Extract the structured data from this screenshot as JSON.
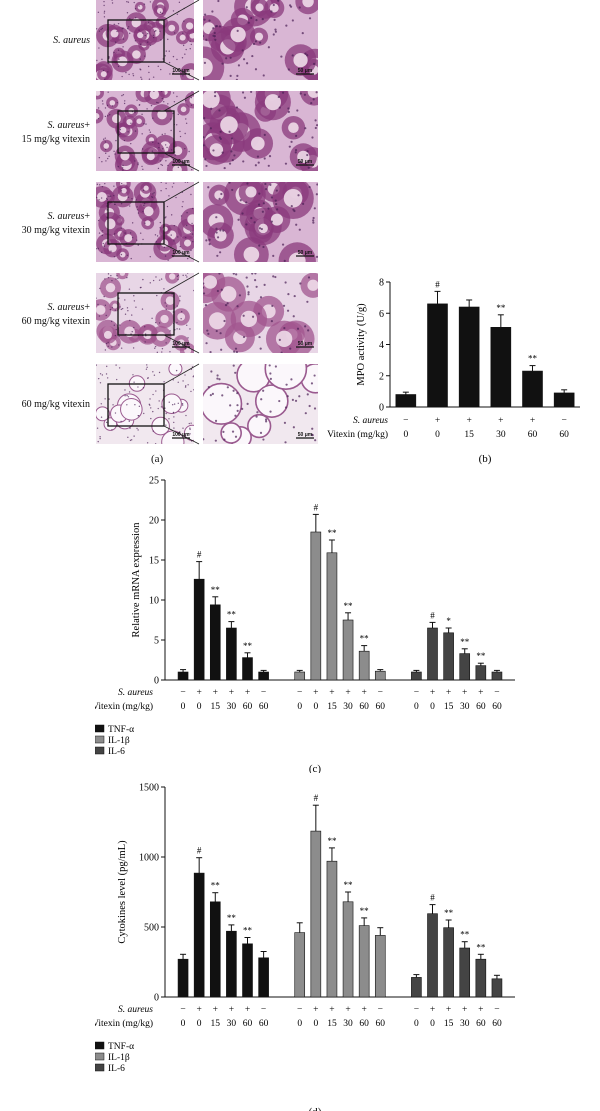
{
  "panel_a": {
    "label": "(a)",
    "rows": [
      {
        "label_italic": "S. aureus",
        "label_rest": "",
        "label_line2": "",
        "scale_low": "100 μm",
        "scale_high": "50 μm",
        "style": "dense"
      },
      {
        "label_italic": "S. aureus",
        "label_rest": "+",
        "label_line2": "15 mg/kg vitexin",
        "scale_low": "100 μm",
        "scale_high": "50 μm",
        "style": "dense"
      },
      {
        "label_italic": "S. aureus",
        "label_rest": "+",
        "label_line2": "30 mg/kg vitexin",
        "scale_low": "100 μm",
        "scale_high": "50 μm",
        "style": "dense"
      },
      {
        "label_italic": "S. aureus",
        "label_rest": "+",
        "label_line2": "60 mg/kg vitexin",
        "scale_low": "100 μm",
        "scale_high": "50 μm",
        "style": "medium"
      },
      {
        "label_italic": "",
        "label_rest": "60 mg/kg vitexin",
        "label_line2": "",
        "scale_low": "100 μm",
        "scale_high": "50 μm",
        "style": "sparse"
      }
    ]
  },
  "treatment_rows": {
    "saureus_label": "S. aureus",
    "vitexin_label": "Vitexin (mg/kg)",
    "saureus_signs": [
      "−",
      "+",
      "+",
      "+",
      "+",
      "−"
    ],
    "vitexin_doses": [
      "0",
      "0",
      "15",
      "30",
      "60",
      "60"
    ]
  },
  "chart_data": [
    {
      "id": "b",
      "panel_label": "(b)",
      "type": "bar",
      "ylabel": "MPO activity (U/g)",
      "ylim": [
        0,
        8
      ],
      "yticks": [
        0,
        2,
        4,
        6,
        8
      ],
      "values": [
        0.8,
        6.6,
        6.4,
        5.1,
        2.3,
        0.9
      ],
      "errors": [
        0.15,
        0.8,
        0.45,
        0.8,
        0.35,
        0.2
      ],
      "annotations": [
        "",
        "#",
        "",
        "**",
        "**",
        ""
      ],
      "color": "#111111"
    },
    {
      "id": "c",
      "panel_label": "(c)",
      "type": "bar",
      "ylabel": "Relative mRNA expression",
      "ylim": [
        0,
        25
      ],
      "yticks": [
        0,
        5,
        10,
        15,
        20,
        25
      ],
      "series": [
        {
          "name": "TNF-α",
          "color": "#111111",
          "values": [
            1.0,
            12.6,
            9.4,
            6.5,
            2.8,
            1.0
          ],
          "errors": [
            0.3,
            2.2,
            1.0,
            0.8,
            0.6,
            0.2
          ],
          "annotations": [
            "",
            "#",
            "**",
            "**",
            "**",
            ""
          ]
        },
        {
          "name": "IL-1β",
          "color": "#8c8c8c",
          "values": [
            1.0,
            18.5,
            15.9,
            7.5,
            3.6,
            1.1
          ],
          "errors": [
            0.2,
            2.2,
            1.6,
            0.9,
            0.7,
            0.2
          ],
          "annotations": [
            "",
            "#",
            "**",
            "**",
            "**",
            ""
          ]
        },
        {
          "name": "IL-6",
          "color": "#444444",
          "values": [
            1.0,
            6.5,
            5.9,
            3.3,
            1.8,
            1.0
          ],
          "errors": [
            0.2,
            0.7,
            0.6,
            0.6,
            0.3,
            0.2
          ],
          "annotations": [
            "",
            "#",
            "*",
            "**",
            "**",
            ""
          ]
        }
      ]
    },
    {
      "id": "d",
      "panel_label": "(d)",
      "type": "bar",
      "ylabel": "Cytokines level (pg/mL)",
      "ylim": [
        0,
        1500
      ],
      "yticks": [
        0,
        500,
        1000,
        1500
      ],
      "series": [
        {
          "name": "TNF-α",
          "color": "#111111",
          "values": [
            270,
            885,
            680,
            470,
            380,
            280
          ],
          "errors": [
            35,
            110,
            65,
            45,
            45,
            45
          ],
          "annotations": [
            "",
            "#",
            "**",
            "**",
            "**",
            ""
          ]
        },
        {
          "name": "IL-1β",
          "color": "#8c8c8c",
          "values": [
            460,
            1185,
            970,
            680,
            510,
            440
          ],
          "errors": [
            70,
            185,
            95,
            70,
            55,
            55
          ],
          "annotations": [
            "",
            "#",
            "**",
            "**",
            "**",
            ""
          ]
        },
        {
          "name": "IL-6",
          "color": "#444444",
          "values": [
            140,
            595,
            495,
            350,
            270,
            130
          ],
          "errors": [
            20,
            65,
            55,
            45,
            35,
            25
          ],
          "annotations": [
            "",
            "#",
            "**",
            "**",
            "**",
            ""
          ]
        }
      ]
    }
  ]
}
